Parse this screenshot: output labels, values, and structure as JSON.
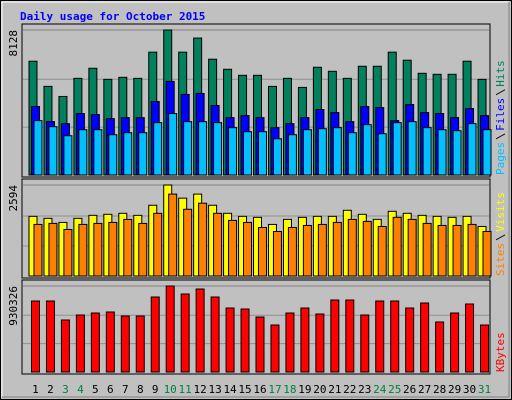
{
  "title": "Daily usage for October 2015",
  "chart_data": [
    {
      "type": "bar",
      "ylim": [
        0,
        8128
      ],
      "yticks": [
        8128
      ],
      "series": [
        {
          "name": "Hits",
          "color": "#00805c",
          "values": [
            6378,
            4967,
            4402,
            5418,
            5983,
            5362,
            5475,
            5418,
            6886,
            8128,
            6886,
            7676,
            6491,
            5926,
            5588,
            5588,
            4967,
            5418,
            4910,
            6039,
            5813,
            5418,
            6096,
            6096,
            6886,
            6434,
            5701,
            5644,
            5644,
            6378,
            5362
          ]
        },
        {
          "name": "Files",
          "color": "#0000ff",
          "values": [
            3838,
            2991,
            2878,
            3443,
            3386,
            3161,
            3217,
            3217,
            4120,
            5249,
            4515,
            4572,
            3894,
            3217,
            3330,
            3217,
            2653,
            2878,
            3217,
            3669,
            3499,
            2991,
            3838,
            3781,
            3048,
            3951,
            3499,
            3443,
            3217,
            3725,
            3330
          ]
        },
        {
          "name": "Pages",
          "color": "#00c0ff",
          "values": [
            3048,
            2709,
            2201,
            2540,
            2540,
            2258,
            2370,
            2370,
            2935,
            3443,
            2991,
            2991,
            2935,
            2653,
            2427,
            2427,
            2032,
            2258,
            2540,
            2596,
            2653,
            2370,
            2822,
            2314,
            2935,
            2991,
            2653,
            2540,
            2483,
            2878,
            2540
          ]
        }
      ]
    },
    {
      "type": "bar",
      "ylim": [
        0,
        2594
      ],
      "yticks": [
        2594
      ],
      "series": [
        {
          "name": "Visits",
          "color": "#ffff00",
          "values": [
            1700,
            1643,
            1527,
            1643,
            1729,
            1758,
            1787,
            1729,
            2017,
            2594,
            2219,
            2334,
            2017,
            1787,
            1700,
            1672,
            1470,
            1614,
            1672,
            1700,
            1700,
            1873,
            1758,
            1614,
            1844,
            1787,
            1729,
            1700,
            1672,
            1700,
            1412
          ]
        },
        {
          "name": "Sites",
          "color": "#ff8000",
          "values": [
            1470,
            1499,
            1326,
            1470,
            1499,
            1527,
            1614,
            1499,
            1787,
            2334,
            1902,
            2075,
            1787,
            1585,
            1527,
            1383,
            1268,
            1383,
            1441,
            1470,
            1527,
            1614,
            1556,
            1412,
            1672,
            1614,
            1499,
            1441,
            1441,
            1470,
            1268
          ]
        }
      ]
    },
    {
      "type": "bar",
      "ylim": [
        0,
        930326
      ],
      "yticks": [
        930326
      ],
      "categories": [
        "1",
        "2",
        "3",
        "4",
        "5",
        "6",
        "7",
        "8",
        "9",
        "10",
        "11",
        "12",
        "13",
        "14",
        "15",
        "16",
        "17",
        "18",
        "19",
        "20",
        "21",
        "22",
        "23",
        "24",
        "25",
        "26",
        "27",
        "28",
        "29",
        "30",
        "31"
      ],
      "category_colors": [
        "#000000",
        "#000000",
        "#008040",
        "#008040",
        "#000000",
        "#000000",
        "#000000",
        "#000000",
        "#000000",
        "#008040",
        "#008040",
        "#000000",
        "#000000",
        "#000000",
        "#000000",
        "#000000",
        "#008040",
        "#008040",
        "#000000",
        "#000000",
        "#000000",
        "#000000",
        "#000000",
        "#008040",
        "#008040",
        "#000000",
        "#000000",
        "#000000",
        "#000000",
        "#000000",
        "#008040"
      ],
      "series": [
        {
          "name": "KBytes",
          "color": "#ff0000",
          "values": [
            768078,
            768078,
            562536,
            616626,
            638262,
            649080,
            605808,
            605808,
            811350,
            930326,
            843804,
            897894,
            811350,
            692352,
            681534,
            594990,
            508446,
            638262,
            692352,
            627444,
            778896,
            778896,
            616626,
            768078,
            768078,
            692352,
            746442,
            540900,
            638262,
            735624,
            508446
          ]
        }
      ]
    }
  ]
}
